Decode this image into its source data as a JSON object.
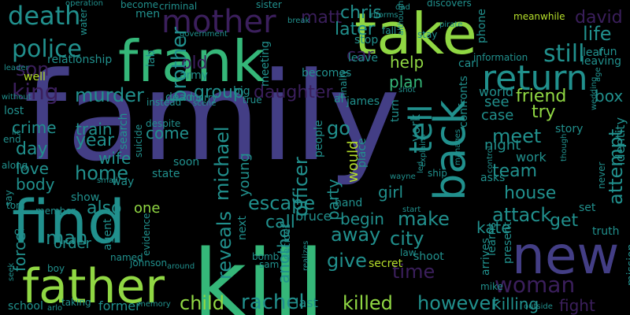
{
  "colors": {
    "background": "#000000",
    "purple_dark": "#3b1f5c",
    "indigo": "#433e85",
    "blue": "#3a5b8c",
    "teal_blue": "#2e6e8e",
    "teal": "#21908d",
    "green": "#35b779",
    "lime": "#90d743",
    "yellow_green": "#b5de2b"
  },
  "words": [
    "family",
    "kill",
    "frank",
    "take",
    "find",
    "new",
    "father",
    "mother",
    "death",
    "return",
    "back",
    "police",
    "woman",
    "life",
    "tell",
    "son",
    "king",
    "attack",
    "killed",
    "however",
    "rachel",
    "child",
    "city",
    "attempt",
    "escape",
    "meet",
    "team",
    "help",
    "away",
    "give",
    "make",
    "reveals",
    "murder",
    "crime",
    "also",
    "home",
    "friend",
    "michael",
    "daughter",
    "old",
    "david",
    "matt",
    "chris",
    "still",
    "later",
    "car",
    "plan",
    "go",
    "group",
    "brother",
    "year",
    "day",
    "love",
    "body",
    "train",
    "come",
    "wife",
    "try",
    "case",
    "house",
    "girl",
    "officer",
    "another",
    "begin",
    "one",
    "man",
    "force",
    "order",
    "time",
    "get",
    "kate",
    "killing",
    "fight",
    "last",
    "school",
    "box",
    "see",
    "night",
    "work",
    "world",
    "york",
    "party",
    "would",
    "young",
    "story",
    "mission",
    "identity",
    "agent",
    "bruce",
    "secret",
    "call",
    "next",
    "hand",
    "shoot",
    "arrives",
    "learns",
    "mike",
    "present",
    "james",
    "turn",
    "leave",
    "stop",
    "carl",
    "place",
    "phone",
    "run",
    "leaf",
    "well",
    "relationship",
    "army",
    "men",
    "meeting",
    "becomes",
    "discovers",
    "meanwhile",
    "sister",
    "criminal",
    "water",
    "operation",
    "lab",
    "dead",
    "marry",
    "scene",
    "big",
    "true",
    "al",
    "people",
    "confronts",
    "state",
    "soon",
    "search",
    "suicide",
    "show",
    "way",
    "small",
    "member",
    "tom",
    "boy",
    "named",
    "evidence",
    "johnson",
    "around",
    "former",
    "taking",
    "arlo",
    "memory",
    "outside",
    "decides",
    "bomb",
    "sam",
    "realizes",
    "law",
    "start",
    "ship",
    "asks",
    "control",
    "set",
    "truth",
    "never",
    "leaving",
    "information",
    "leader",
    "fall",
    "pirate",
    "stay",
    "break",
    "finally",
    "without",
    "lost",
    "end",
    "lie",
    "along",
    "say",
    "dr",
    "seek",
    "despite",
    "instead",
    "government",
    "become",
    "dad",
    "informs",
    "shot",
    "wayne",
    "wedding",
    "though",
    "age",
    "manages",
    "explains",
    "although",
    "led"
  ]
}
